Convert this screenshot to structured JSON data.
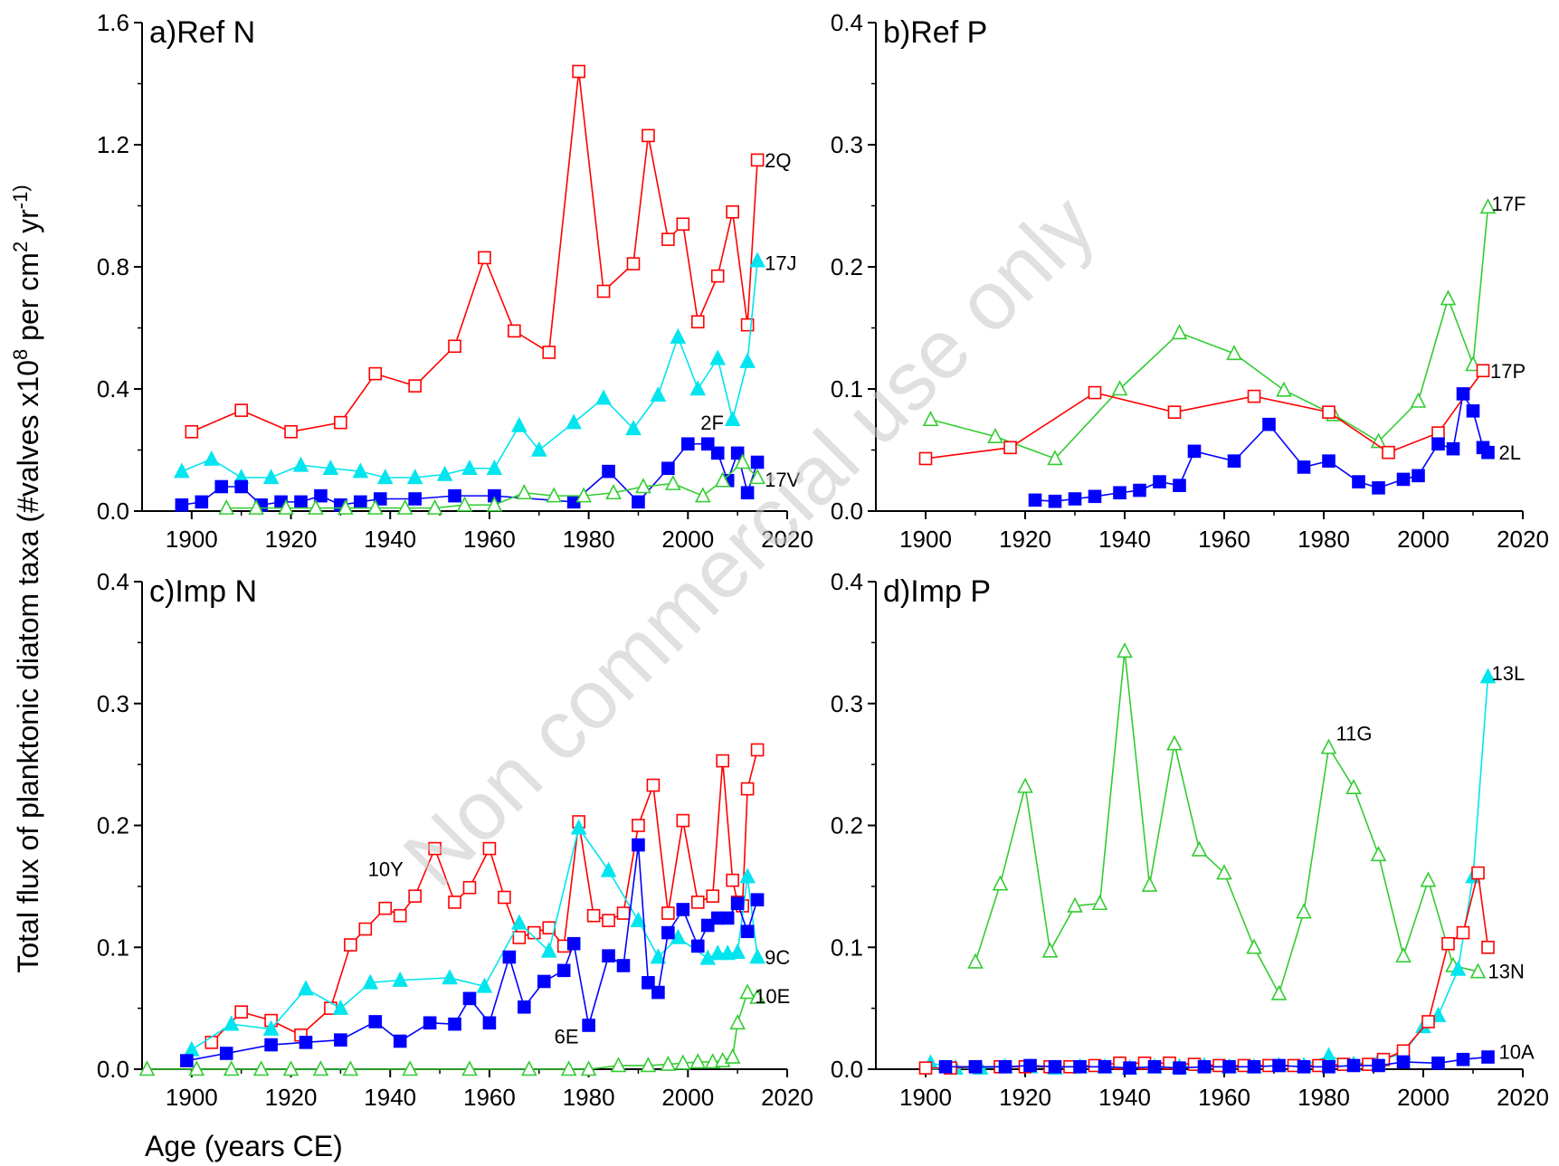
{
  "figure": {
    "ylabel": "Total flux of planktonic diatom taxa (#valves x10",
    "ylabel_sup": "8",
    "ylabel_mid": " per cm",
    "ylabel_sup2": "2",
    "ylabel_end": " yr",
    "ylabel_sup3": "-1)",
    "xlabel": "Age (years CE)",
    "watermark": "Non commercial use only"
  },
  "colors": {
    "red": "#ff0000",
    "cyan": "#00e5ee",
    "blue": "#0000ff",
    "green": "#33cc33"
  },
  "chart_data": [
    {
      "id": "a",
      "type": "line",
      "title": "a)Ref N",
      "xlim": [
        1890,
        2020
      ],
      "ylim": [
        0,
        1.6
      ],
      "xticks": [
        1900,
        1920,
        1940,
        1960,
        1980,
        2000,
        2020
      ],
      "yticks": [
        0.0,
        0.4,
        0.8,
        1.2,
        1.6
      ],
      "ytick_labels": [
        "0.0",
        "0.4",
        "0.8",
        "1.2",
        "1.6"
      ],
      "series": [
        {
          "name": "2Q",
          "color": "red",
          "marker": "open-square",
          "x": [
            1900,
            1910,
            1920,
            1930,
            1937,
            1945,
            1953,
            1959,
            1965,
            1972,
            1978,
            1983,
            1989,
            1992,
            1996,
            1999,
            2002,
            2006,
            2009,
            2012,
            2014
          ],
          "y": [
            0.26,
            0.33,
            0.26,
            0.29,
            0.45,
            0.41,
            0.54,
            0.83,
            0.59,
            0.52,
            1.44,
            0.72,
            0.81,
            1.23,
            0.89,
            0.94,
            0.62,
            0.77,
            0.98,
            0.61,
            1.15
          ]
        },
        {
          "name": "17J",
          "color": "cyan",
          "marker": "filled-triangle",
          "x": [
            1898,
            1904,
            1910,
            1916,
            1922,
            1928,
            1934,
            1939,
            1945,
            1951,
            1956,
            1961,
            1966,
            1970,
            1977,
            1983,
            1989,
            1994,
            1998,
            2002,
            2006,
            2009,
            2012,
            2014
          ],
          "y": [
            0.13,
            0.17,
            0.11,
            0.11,
            0.15,
            0.14,
            0.13,
            0.11,
            0.11,
            0.12,
            0.14,
            0.14,
            0.28,
            0.2,
            0.29,
            0.37,
            0.27,
            0.38,
            0.57,
            0.4,
            0.5,
            0.3,
            0.49,
            0.82
          ]
        },
        {
          "name": "2F",
          "color": "blue",
          "marker": "filled-square",
          "x": [
            1898,
            1902,
            1906,
            1910,
            1914,
            1918,
            1922,
            1926,
            1930,
            1934,
            1938,
            1945,
            1953,
            1961,
            1977,
            1984,
            1990,
            1996,
            2000,
            2004,
            2006,
            2008,
            2010,
            2012,
            2014
          ],
          "y": [
            0.02,
            0.03,
            0.08,
            0.08,
            0.02,
            0.03,
            0.03,
            0.05,
            0.02,
            0.03,
            0.04,
            0.04,
            0.05,
            0.05,
            0.03,
            0.13,
            0.03,
            0.14,
            0.22,
            0.22,
            0.19,
            0.1,
            0.19,
            0.06,
            0.16
          ]
        },
        {
          "name": "17V",
          "color": "green",
          "marker": "open-triangle",
          "x": [
            1907,
            1913,
            1919,
            1925,
            1931,
            1937,
            1943,
            1949,
            1955,
            1961,
            1967,
            1973,
            1979,
            1985,
            1991,
            1997,
            2003,
            2007,
            2011,
            2014
          ],
          "y": [
            0.01,
            0.01,
            0.01,
            0.01,
            0.01,
            0.01,
            0.01,
            0.01,
            0.02,
            0.02,
            0.06,
            0.05,
            0.05,
            0.06,
            0.08,
            0.09,
            0.05,
            0.1,
            0.16,
            0.11
          ]
        }
      ]
    },
    {
      "id": "b",
      "type": "line",
      "title": "b)Ref P",
      "xlim": [
        1890,
        2020
      ],
      "ylim": [
        0,
        0.4
      ],
      "xticks": [
        1900,
        1920,
        1940,
        1960,
        1980,
        2000,
        2020
      ],
      "yticks": [
        0.0,
        0.1,
        0.2,
        0.3,
        0.4
      ],
      "ytick_labels": [
        "0.0",
        "0.1",
        "0.2",
        "0.3",
        "0.4"
      ],
      "series": [
        {
          "name": "17F",
          "color": "green",
          "marker": "open-triangle",
          "x": [
            1901,
            1914,
            1926,
            1939,
            1951,
            1962,
            1972,
            1982,
            1991,
            1999,
            2005,
            2010,
            2013
          ],
          "y": [
            0.075,
            0.061,
            0.043,
            0.1,
            0.146,
            0.129,
            0.099,
            0.079,
            0.057,
            0.09,
            0.174,
            0.12,
            0.249
          ]
        },
        {
          "name": "17P",
          "color": "red",
          "marker": "open-square",
          "x": [
            1900,
            1917,
            1934,
            1950,
            1966,
            1981,
            1993,
            2003,
            2012
          ],
          "y": [
            0.043,
            0.052,
            0.097,
            0.081,
            0.094,
            0.081,
            0.048,
            0.064,
            0.115
          ]
        },
        {
          "name": "2L",
          "color": "blue",
          "marker": "filled-square",
          "x": [
            1922,
            1926,
            1930,
            1934,
            1939,
            1943,
            1947,
            1951,
            1954,
            1962,
            1969,
            1976,
            1981,
            1987,
            1991,
            1996,
            1999,
            2003,
            2006,
            2008,
            2010,
            2012,
            2013
          ],
          "y": [
            0.009,
            0.008,
            0.01,
            0.012,
            0.015,
            0.017,
            0.024,
            0.021,
            0.049,
            0.041,
            0.071,
            0.036,
            0.041,
            0.024,
            0.019,
            0.026,
            0.029,
            0.055,
            0.051,
            0.096,
            0.082,
            0.052,
            0.048
          ]
        }
      ]
    },
    {
      "id": "c",
      "type": "line",
      "title": "c)Imp N",
      "xlim": [
        1890,
        2020
      ],
      "ylim": [
        0,
        0.4
      ],
      "xticks": [
        1900,
        1920,
        1940,
        1960,
        1980,
        2000,
        2020
      ],
      "yticks": [
        0.0,
        0.1,
        0.2,
        0.3,
        0.4
      ],
      "ytick_labels": [
        "0.0",
        "0.1",
        "0.2",
        "0.3",
        "0.4"
      ],
      "series": [
        {
          "name": "10Y",
          "color": "red",
          "marker": "open-square",
          "x": [
            1904,
            1910,
            1916,
            1922,
            1928,
            1932,
            1935,
            1939,
            1942,
            1945,
            1949,
            1953,
            1956,
            1960,
            1963,
            1966,
            1969,
            1972,
            1975,
            1978,
            1981,
            1984,
            1987,
            1990,
            1993,
            1996,
            1999,
            2002,
            2005,
            2007,
            2009,
            2010,
            2011,
            2012,
            2014
          ],
          "y": [
            0.022,
            0.047,
            0.04,
            0.028,
            0.05,
            0.102,
            0.115,
            0.132,
            0.126,
            0.142,
            0.181,
            0.137,
            0.149,
            0.181,
            0.141,
            0.108,
            0.112,
            0.116,
            0.101,
            0.203,
            0.126,
            0.122,
            0.128,
            0.2,
            0.233,
            0.128,
            0.204,
            0.137,
            0.142,
            0.253,
            0.155,
            0.137,
            0.134,
            0.23,
            0.262
          ]
        },
        {
          "name": "9C",
          "color": "cyan",
          "marker": "filled-triangle",
          "x": [
            1900,
            1908,
            1916,
            1923,
            1930,
            1936,
            1942,
            1952,
            1959,
            1966,
            1972,
            1978,
            1984,
            1990,
            1994,
            1998,
            2004,
            2006,
            2008,
            2010,
            2012,
            2014
          ],
          "y": [
            0.016,
            0.037,
            0.033,
            0.066,
            0.05,
            0.071,
            0.073,
            0.075,
            0.068,
            0.12,
            0.097,
            0.198,
            0.163,
            0.122,
            0.092,
            0.108,
            0.091,
            0.095,
            0.095,
            0.096,
            0.158,
            0.092
          ]
        },
        {
          "name": "6E",
          "color": "blue",
          "marker": "filled-square",
          "x": [
            1899,
            1907,
            1916,
            1923,
            1930,
            1937,
            1942,
            1948,
            1953,
            1956,
            1960,
            1964,
            1967,
            1971,
            1975,
            1977,
            1980,
            1984,
            1987,
            1990,
            1992,
            1994,
            1996,
            1999,
            2002,
            2004,
            2006,
            2008,
            2010,
            2012,
            2014
          ],
          "y": [
            0.007,
            0.013,
            0.02,
            0.022,
            0.024,
            0.039,
            0.023,
            0.038,
            0.037,
            0.058,
            0.038,
            0.092,
            0.051,
            0.072,
            0.081,
            0.103,
            0.036,
            0.093,
            0.085,
            0.184,
            0.071,
            0.063,
            0.112,
            0.131,
            0.101,
            0.118,
            0.124,
            0.124,
            0.136,
            0.113,
            0.139
          ]
        },
        {
          "name": "10E",
          "color": "green",
          "marker": "open-triangle",
          "x": [
            1891,
            1901,
            1908,
            1914,
            1920,
            1926,
            1932,
            1944,
            1956,
            1968,
            1976,
            1980,
            1986,
            1992,
            1996,
            1999,
            2002,
            2005,
            2007,
            2009,
            2010,
            2012,
            2014
          ],
          "y": [
            0.0,
            0.0,
            0.0,
            0.0,
            0.0,
            0.0,
            0.0,
            0.0,
            0.0,
            0.0,
            0.0,
            0.0,
            0.003,
            0.003,
            0.004,
            0.005,
            0.006,
            0.006,
            0.007,
            0.01,
            0.038,
            0.063,
            0.059
          ]
        }
      ]
    },
    {
      "id": "d",
      "type": "line",
      "title": "d)Imp P",
      "xlim": [
        1890,
        2020
      ],
      "ylim": [
        0,
        0.4
      ],
      "xticks": [
        1900,
        1920,
        1940,
        1960,
        1980,
        2000,
        2020
      ],
      "yticks": [
        0.0,
        0.1,
        0.2,
        0.3,
        0.4
      ],
      "ytick_labels": [
        "0.0",
        "0.1",
        "0.2",
        "0.3",
        "0.4"
      ],
      "series": [
        {
          "name": "11G",
          "color": "green",
          "marker": "open-triangle",
          "x": [
            1910,
            1915,
            1920,
            1925,
            1930,
            1935,
            1940,
            1945,
            1950,
            1955,
            1960,
            1966,
            1971,
            1976,
            1981,
            1986,
            1991,
            1996,
            2001,
            2006,
            2011
          ],
          "y": [
            0.088,
            0.152,
            0.232,
            0.097,
            0.134,
            0.136,
            0.343,
            0.151,
            0.267,
            0.18,
            0.161,
            0.1,
            0.062,
            0.129,
            0.264,
            0.231,
            0.176,
            0.093,
            0.155,
            0.085,
            0.08
          ]
        },
        {
          "name": "13L",
          "color": "cyan",
          "marker": "filled-triangle",
          "x": [
            1901,
            1906,
            1911,
            1916,
            1921,
            1926,
            1931,
            1936,
            1941,
            1946,
            1951,
            1956,
            1961,
            1966,
            1971,
            1976,
            1981,
            1986,
            1991,
            1996,
            2000,
            2003,
            2007,
            2010,
            2013
          ],
          "y": [
            0.005,
            0.001,
            0.001,
            0.002,
            0.002,
            0.001,
            0.002,
            0.002,
            0.001,
            0.002,
            0.002,
            0.003,
            0.002,
            0.002,
            0.003,
            0.003,
            0.011,
            0.004,
            0.007,
            0.013,
            0.035,
            0.044,
            0.082,
            0.158,
            0.322
          ]
        },
        {
          "name": "13N",
          "color": "red",
          "marker": "open-square",
          "x": [
            1900,
            1905,
            1910,
            1915,
            1920,
            1925,
            1929,
            1934,
            1939,
            1944,
            1949,
            1954,
            1959,
            1964,
            1969,
            1974,
            1979,
            1984,
            1989,
            1992,
            1996,
            2001,
            2005,
            2008,
            2011,
            2013
          ],
          "y": [
            0.001,
            0.001,
            0.002,
            0.002,
            0.002,
            0.002,
            0.002,
            0.003,
            0.005,
            0.005,
            0.005,
            0.004,
            0.003,
            0.003,
            0.003,
            0.003,
            0.003,
            0.004,
            0.004,
            0.008,
            0.015,
            0.039,
            0.103,
            0.112,
            0.161,
            0.1
          ]
        },
        {
          "name": "10A",
          "color": "blue",
          "marker": "filled-square",
          "x": [
            1904,
            1910,
            1916,
            1921,
            1926,
            1931,
            1936,
            1941,
            1946,
            1951,
            1956,
            1961,
            1966,
            1971,
            1976,
            1981,
            1986,
            1991,
            1996,
            2003,
            2008,
            2013
          ],
          "y": [
            0.002,
            0.002,
            0.002,
            0.003,
            0.002,
            0.002,
            0.002,
            0.001,
            0.002,
            0.001,
            0.002,
            0.002,
            0.002,
            0.003,
            0.002,
            0.002,
            0.003,
            0.003,
            0.006,
            0.005,
            0.008,
            0.01
          ]
        }
      ]
    }
  ]
}
